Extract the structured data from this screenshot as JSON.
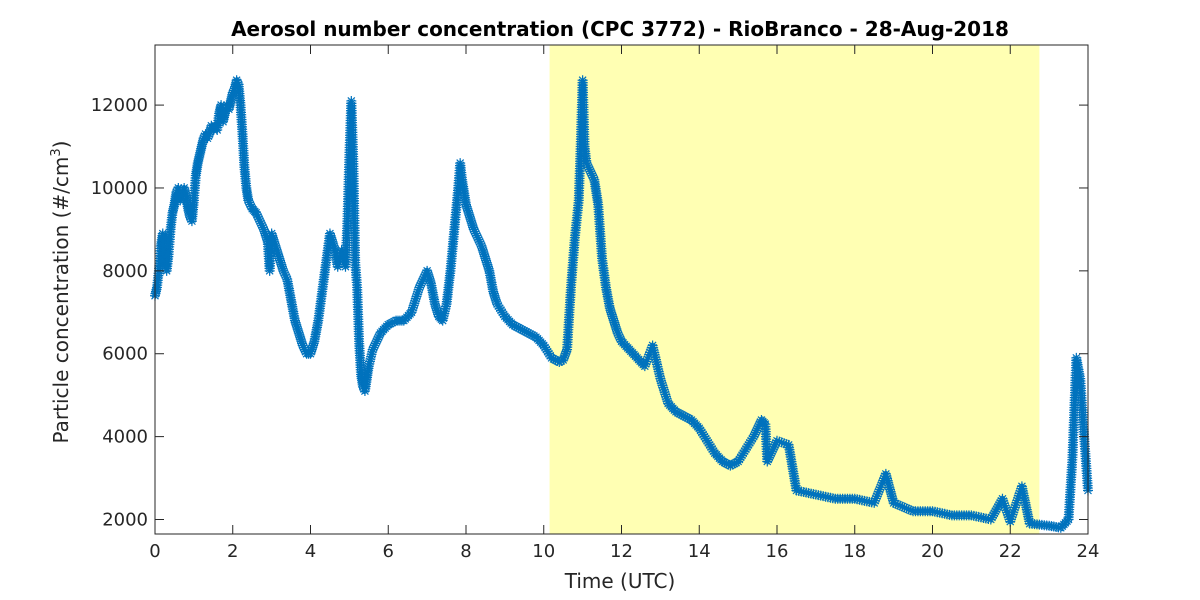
{
  "chart_data": {
    "type": "scatter",
    "title": "Aerosol number concentration (CPC 3772) - RioBranco - 28-Aug-2018",
    "xlabel": "Time (UTC)",
    "ylabel_main": "Particle concentration (#/cm",
    "ylabel_sup": "3",
    "ylabel_close": ")",
    "xlim": [
      0,
      24
    ],
    "ylim": [
      1650,
      13450
    ],
    "x_ticks": [
      0,
      2,
      4,
      6,
      8,
      10,
      12,
      14,
      16,
      18,
      20,
      22,
      24
    ],
    "x_tick_labels": [
      "0",
      "2",
      "4",
      "6",
      "8",
      "10",
      "12",
      "14",
      "16",
      "18",
      "20",
      "22",
      "24"
    ],
    "y_ticks": [
      2000,
      4000,
      6000,
      8000,
      10000,
      12000
    ],
    "y_tick_labels": [
      "2000",
      "4000",
      "6000",
      "8000",
      "10000",
      "12000"
    ],
    "grid": false,
    "shaded_region": {
      "x_start": 10.15,
      "x_end": 22.75,
      "color": "#ffffb3"
    },
    "series": [
      {
        "marker": "asterisk",
        "color": "#0072bd",
        "points": [
          [
            0.0,
            7400
          ],
          [
            0.05,
            7600
          ],
          [
            0.1,
            8000
          ],
          [
            0.15,
            8600
          ],
          [
            0.2,
            8900
          ],
          [
            0.25,
            8200
          ],
          [
            0.3,
            8000
          ],
          [
            0.35,
            8400
          ],
          [
            0.4,
            9000
          ],
          [
            0.45,
            9400
          ],
          [
            0.5,
            9600
          ],
          [
            0.55,
            9900
          ],
          [
            0.6,
            10000
          ],
          [
            0.65,
            9700
          ],
          [
            0.7,
            9800
          ],
          [
            0.75,
            10000
          ],
          [
            0.8,
            9800
          ],
          [
            0.85,
            9500
          ],
          [
            0.9,
            9300
          ],
          [
            0.95,
            9200
          ],
          [
            1.0,
            9700
          ],
          [
            1.05,
            10300
          ],
          [
            1.1,
            10600
          ],
          [
            1.15,
            10800
          ],
          [
            1.2,
            11000
          ],
          [
            1.25,
            11200
          ],
          [
            1.3,
            11300
          ],
          [
            1.35,
            11200
          ],
          [
            1.4,
            11300
          ],
          [
            1.45,
            11500
          ],
          [
            1.5,
            11400
          ],
          [
            1.55,
            11500
          ],
          [
            1.6,
            11400
          ],
          [
            1.65,
            11800
          ],
          [
            1.7,
            12000
          ],
          [
            1.75,
            11600
          ],
          [
            1.8,
            11800
          ],
          [
            1.85,
            12000
          ],
          [
            1.9,
            11900
          ],
          [
            1.95,
            12100
          ],
          [
            2.0,
            12300
          ],
          [
            2.05,
            12400
          ],
          [
            2.1,
            12600
          ],
          [
            2.15,
            12500
          ],
          [
            2.2,
            12000
          ],
          [
            2.25,
            11300
          ],
          [
            2.3,
            10500
          ],
          [
            2.35,
            10000
          ],
          [
            2.4,
            9700
          ],
          [
            2.5,
            9500
          ],
          [
            2.6,
            9400
          ],
          [
            2.7,
            9200
          ],
          [
            2.8,
            9000
          ],
          [
            2.9,
            8700
          ],
          [
            2.95,
            8000
          ],
          [
            3.0,
            8900
          ],
          [
            3.1,
            8600
          ],
          [
            3.2,
            8300
          ],
          [
            3.3,
            8000
          ],
          [
            3.4,
            7800
          ],
          [
            3.5,
            7300
          ],
          [
            3.6,
            6800
          ],
          [
            3.7,
            6500
          ],
          [
            3.8,
            6200
          ],
          [
            3.9,
            6000
          ],
          [
            4.0,
            6000
          ],
          [
            4.1,
            6300
          ],
          [
            4.2,
            6800
          ],
          [
            4.3,
            7500
          ],
          [
            4.4,
            8200
          ],
          [
            4.5,
            8900
          ],
          [
            4.6,
            8600
          ],
          [
            4.7,
            8100
          ],
          [
            4.8,
            8500
          ],
          [
            4.9,
            8100
          ],
          [
            4.95,
            9200
          ],
          [
            5.0,
            10800
          ],
          [
            5.05,
            12100
          ],
          [
            5.1,
            10700
          ],
          [
            5.15,
            8200
          ],
          [
            5.2,
            7600
          ],
          [
            5.25,
            6300
          ],
          [
            5.3,
            5500
          ],
          [
            5.35,
            5200
          ],
          [
            5.4,
            5100
          ],
          [
            5.5,
            5700
          ],
          [
            5.6,
            6100
          ],
          [
            5.7,
            6300
          ],
          [
            5.8,
            6500
          ],
          [
            6.0,
            6700
          ],
          [
            6.2,
            6800
          ],
          [
            6.4,
            6800
          ],
          [
            6.6,
            7000
          ],
          [
            6.8,
            7600
          ],
          [
            7.0,
            8000
          ],
          [
            7.1,
            7700
          ],
          [
            7.2,
            7200
          ],
          [
            7.3,
            6900
          ],
          [
            7.4,
            6800
          ],
          [
            7.5,
            7200
          ],
          [
            7.6,
            8000
          ],
          [
            7.7,
            9000
          ],
          [
            7.8,
            10000
          ],
          [
            7.85,
            10600
          ],
          [
            7.9,
            10200
          ],
          [
            8.0,
            9600
          ],
          [
            8.1,
            9300
          ],
          [
            8.2,
            9000
          ],
          [
            8.3,
            8800
          ],
          [
            8.4,
            8600
          ],
          [
            8.5,
            8300
          ],
          [
            8.6,
            8000
          ],
          [
            8.7,
            7500
          ],
          [
            8.8,
            7200
          ],
          [
            9.0,
            6900
          ],
          [
            9.2,
            6700
          ],
          [
            9.4,
            6600
          ],
          [
            9.6,
            6500
          ],
          [
            9.8,
            6400
          ],
          [
            10.0,
            6200
          ],
          [
            10.2,
            5900
          ],
          [
            10.4,
            5800
          ],
          [
            10.5,
            5850
          ],
          [
            10.6,
            6100
          ],
          [
            10.7,
            7600
          ],
          [
            10.8,
            8800
          ],
          [
            10.9,
            9700
          ],
          [
            10.95,
            11000
          ],
          [
            11.0,
            12600
          ],
          [
            11.05,
            11000
          ],
          [
            11.1,
            10600
          ],
          [
            11.2,
            10400
          ],
          [
            11.3,
            10200
          ],
          [
            11.4,
            9600
          ],
          [
            11.5,
            8300
          ],
          [
            11.6,
            7600
          ],
          [
            11.7,
            7100
          ],
          [
            11.8,
            6800
          ],
          [
            11.9,
            6500
          ],
          [
            12.0,
            6300
          ],
          [
            12.2,
            6100
          ],
          [
            12.4,
            5900
          ],
          [
            12.6,
            5700
          ],
          [
            12.8,
            6200
          ],
          [
            13.0,
            5400
          ],
          [
            13.2,
            4800
          ],
          [
            13.4,
            4600
          ],
          [
            13.6,
            4500
          ],
          [
            13.8,
            4400
          ],
          [
            14.0,
            4200
          ],
          [
            14.2,
            3900
          ],
          [
            14.4,
            3600
          ],
          [
            14.6,
            3400
          ],
          [
            14.8,
            3300
          ],
          [
            15.0,
            3400
          ],
          [
            15.2,
            3700
          ],
          [
            15.4,
            4000
          ],
          [
            15.6,
            4400
          ],
          [
            15.7,
            4300
          ],
          [
            15.75,
            3400
          ],
          [
            16.0,
            3900
          ],
          [
            16.3,
            3800
          ],
          [
            16.5,
            2700
          ],
          [
            17.0,
            2600
          ],
          [
            17.5,
            2500
          ],
          [
            18.0,
            2500
          ],
          [
            18.5,
            2400
          ],
          [
            18.8,
            3100
          ],
          [
            19.0,
            2400
          ],
          [
            19.5,
            2200
          ],
          [
            20.0,
            2200
          ],
          [
            20.5,
            2100
          ],
          [
            21.0,
            2100
          ],
          [
            21.5,
            2000
          ],
          [
            21.8,
            2500
          ],
          [
            22.0,
            1950
          ],
          [
            22.3,
            2800
          ],
          [
            22.5,
            1900
          ],
          [
            23.0,
            1850
          ],
          [
            23.3,
            1800
          ],
          [
            23.5,
            2000
          ],
          [
            23.6,
            3500
          ],
          [
            23.7,
            5900
          ],
          [
            23.8,
            5400
          ],
          [
            23.9,
            4000
          ],
          [
            24.0,
            2700
          ]
        ]
      }
    ]
  }
}
